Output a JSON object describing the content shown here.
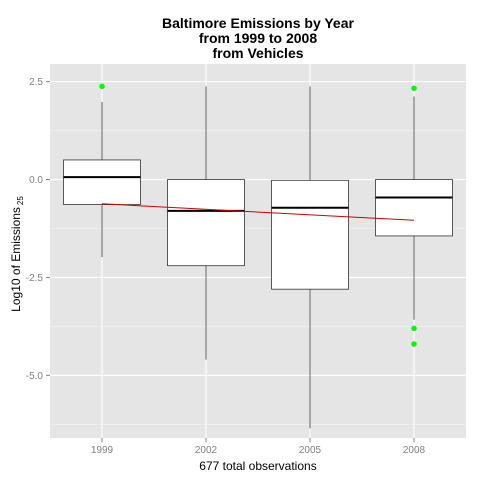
{
  "chart_data": {
    "type": "box",
    "title_lines": [
      "Baltimore Emissions by Year",
      "from 1999 to 2008",
      "from Vehicles"
    ],
    "xlabel": "677 total observations",
    "ylabel_main": "Log10 of Emissions",
    "ylabel_sub": "25",
    "categories": [
      "1999",
      "2002",
      "2005",
      "2008"
    ],
    "y_ticks": [
      2.5,
      0.0,
      -2.5,
      -5.0
    ],
    "y_tick_labels": [
      "2.5",
      "0.0",
      "-2.5",
      "-5.0"
    ],
    "ylim": [
      -6.6,
      2.95
    ],
    "grid": true,
    "background_color": "#e5e5e5",
    "grid_color": "#ffffff",
    "box_fill": "#ffffff",
    "outlier_color": "#00ff00",
    "trend_color": "#cc0000",
    "boxes": [
      {
        "category": "1999",
        "lower_whisker": -1.98,
        "q1": -0.64,
        "median": 0.06,
        "q3": 0.5,
        "upper_whisker": 1.98,
        "outliers": [
          2.38
        ]
      },
      {
        "category": "2002",
        "lower_whisker": -4.6,
        "q1": -2.2,
        "median": -0.8,
        "q3": 0.0,
        "upper_whisker": 2.38,
        "outliers": []
      },
      {
        "category": "2005",
        "lower_whisker": -6.35,
        "q1": -2.8,
        "median": -0.72,
        "q3": -0.02,
        "upper_whisker": 2.38,
        "outliers": []
      },
      {
        "category": "2008",
        "lower_whisker": -3.58,
        "q1": -1.44,
        "median": -0.46,
        "q3": 0.0,
        "upper_whisker": 2.12,
        "outliers": [
          2.33,
          -3.8,
          -4.2
        ]
      }
    ],
    "trend_line": {
      "x_start": "1999",
      "y_start": -0.62,
      "x_end": "2008",
      "y_end": -1.04
    }
  }
}
